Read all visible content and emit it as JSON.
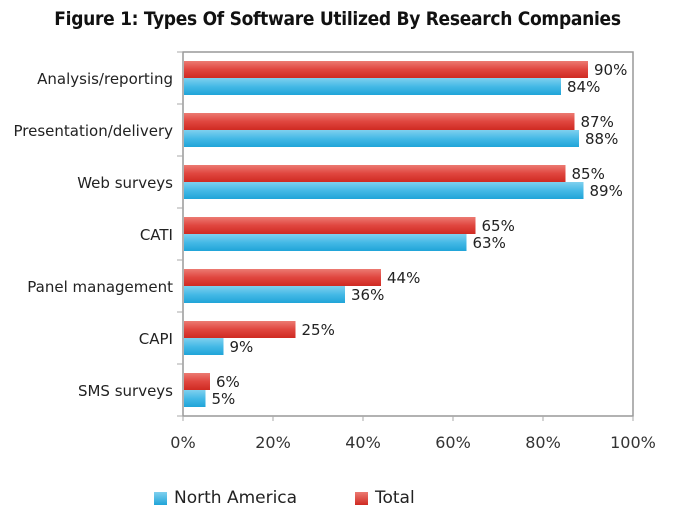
{
  "chart_data": {
    "type": "bar",
    "orientation": "horizontal",
    "title": "Figure 1: Types Of Software Utilized By Research Companies",
    "xlabel": "",
    "ylabel": "",
    "xlim": [
      0,
      100
    ],
    "x_ticks": [
      "0%",
      "20%",
      "40%",
      "60%",
      "80%",
      "100%"
    ],
    "x_tick_values": [
      0,
      20,
      40,
      60,
      80,
      100
    ],
    "grid": false,
    "legend_position": "bottom",
    "categories": [
      "Analysis/reporting",
      "Presentation/delivery",
      "Web surveys",
      "CATI",
      "Panel management",
      "CAPI",
      "SMS surveys"
    ],
    "series": [
      {
        "name": "Total",
        "color": "#e0403a",
        "values": [
          90,
          87,
          85,
          65,
          44,
          25,
          6
        ],
        "labels": [
          "90%",
          "87%",
          "85%",
          "65%",
          "44%",
          "25%",
          "6%"
        ]
      },
      {
        "name": "North America",
        "color": "#3ab4e2",
        "values": [
          84,
          88,
          89,
          63,
          36,
          9,
          5
        ],
        "labels": [
          "84%",
          "88%",
          "89%",
          "63%",
          "36%",
          "9%",
          "5%"
        ]
      }
    ],
    "legend": [
      "North America",
      "Total"
    ]
  }
}
